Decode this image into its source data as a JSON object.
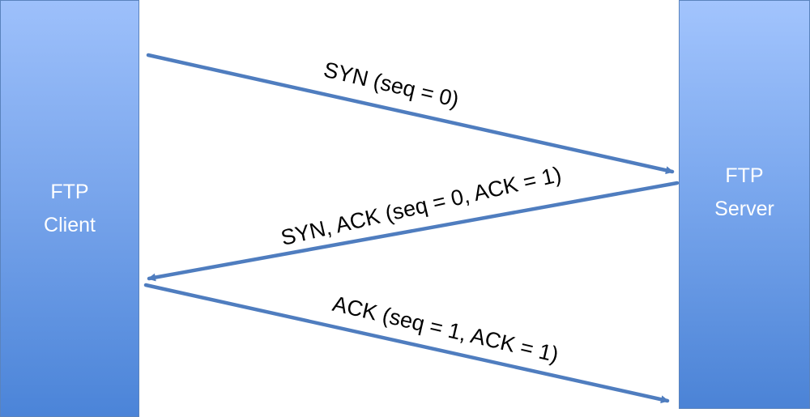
{
  "client": {
    "line1": "FTP",
    "line2": "Client"
  },
  "server": {
    "line1": "FTP",
    "line2": "Server"
  },
  "messages": [
    {
      "label": "SYN (seq = 0)",
      "direction": "client-to-server"
    },
    {
      "label": "SYN, ACK (seq = 0, ACK = 1)",
      "direction": "server-to-client"
    },
    {
      "label": "ACK (seq = 1, ACK = 1)",
      "direction": "client-to-server"
    }
  ],
  "colors": {
    "arrow": "#4f7dbf",
    "box_top": "#9dc0fb",
    "box_bottom": "#4b84d8",
    "text_on_box": "#ffffff",
    "label_text": "#000000"
  }
}
